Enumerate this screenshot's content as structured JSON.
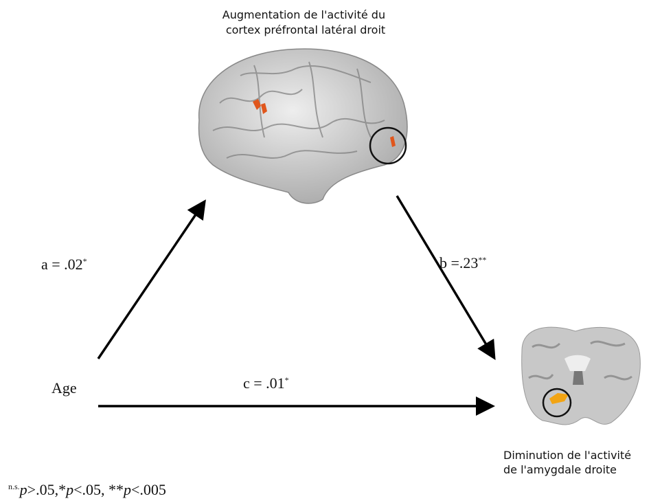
{
  "nodes": [
    {
      "label_lines": [
        "Augmentation de l'activité du",
        "cortex préfrontal latéral droit"
      ]
    },
    {
      "label_lines": [
        "Age"
      ]
    },
    {
      "label_lines": [
        "Diminution de l'activité",
        "de l'amygdale droite"
      ]
    }
  ],
  "edges": [
    {
      "label": "a = .02",
      "sig": "*"
    },
    {
      "label": "b =.23",
      "sig": "**"
    },
    {
      "label": "c = .01",
      "sig": "*"
    }
  ],
  "legend": [
    {
      "text": "n.s.",
      "style": "sup"
    },
    {
      "text": "p",
      "style": "italic"
    },
    {
      "text": ">.05,",
      "style": "normal"
    },
    {
      "text": "*",
      "style": "normal"
    },
    {
      "text": "p",
      "style": "italic"
    },
    {
      "text": "<.05, ",
      "style": "normal"
    },
    {
      "text": "**",
      "style": "normal"
    },
    {
      "text": "p",
      "style": "italic"
    },
    {
      "text": "<.005",
      "style": "normal"
    }
  ]
}
